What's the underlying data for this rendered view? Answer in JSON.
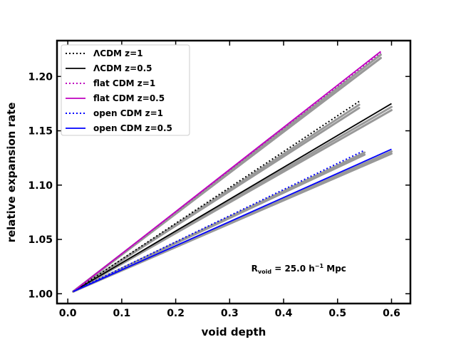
{
  "chart_data": {
    "type": "line",
    "xlabel": "void depth",
    "ylabel": "relative expansion rate",
    "xlim": [
      -0.02,
      0.635
    ],
    "ylim": [
      0.991,
      1.233
    ],
    "xticks": [
      0.0,
      0.1,
      0.2,
      0.3,
      0.4,
      0.5,
      0.6
    ],
    "xtick_labels": [
      "0.0",
      "0.1",
      "0.2",
      "0.3",
      "0.4",
      "0.5",
      "0.6"
    ],
    "yticks": [
      1.0,
      1.05,
      1.1,
      1.15,
      1.2
    ],
    "ytick_labels": [
      "1.00",
      "1.05",
      "1.10",
      "1.15",
      "1.20"
    ],
    "legend_position": "top-left",
    "series": [
      {
        "name": "ΛCDM z=1",
        "color": "#000000",
        "style": "dotted",
        "x": [
          0.01,
          0.54
        ],
        "y": [
          1.002,
          1.177
        ],
        "reference_y": [
          1.002,
          1.174
        ],
        "reference_spread": 0.003
      },
      {
        "name": "ΛCDM z=0.5",
        "color": "#000000",
        "style": "solid",
        "x": [
          0.01,
          0.6
        ],
        "y": [
          1.002,
          1.175
        ],
        "reference_y": [
          1.002,
          1.172
        ],
        "reference_spread": 0.003
      },
      {
        "name": "flat CDM z=1",
        "color": "#bf00bf",
        "style": "dotted",
        "x": [
          0.01,
          0.58
        ],
        "y": [
          1.002,
          1.222
        ],
        "reference_y": [
          1.002,
          1.22
        ],
        "reference_spread": 0.003
      },
      {
        "name": "flat CDM z=0.5",
        "color": "#bf00bf",
        "style": "solid",
        "x": [
          0.01,
          0.58
        ],
        "y": [
          1.002,
          1.223
        ],
        "reference_y": [
          1.002,
          1.22
        ],
        "reference_spread": 0.003
      },
      {
        "name": "open CDM z=1",
        "color": "#0000ff",
        "style": "dotted",
        "x": [
          0.01,
          0.55
        ],
        "y": [
          1.002,
          1.132
        ],
        "reference_y": [
          1.002,
          1.13
        ],
        "reference_spread": 0.002
      },
      {
        "name": "open CDM z=0.5",
        "color": "#0000ff",
        "style": "solid",
        "x": [
          0.01,
          0.6
        ],
        "y": [
          1.002,
          1.133
        ],
        "reference_y": [
          1.002,
          1.131
        ],
        "reference_spread": 0.002
      }
    ],
    "annotation": {
      "prefix": "R",
      "subscript": "void",
      "middle": " = 25.0 h",
      "superscript": "−1",
      "suffix": " Mpc",
      "x": 0.34,
      "y": 1.0205
    }
  }
}
